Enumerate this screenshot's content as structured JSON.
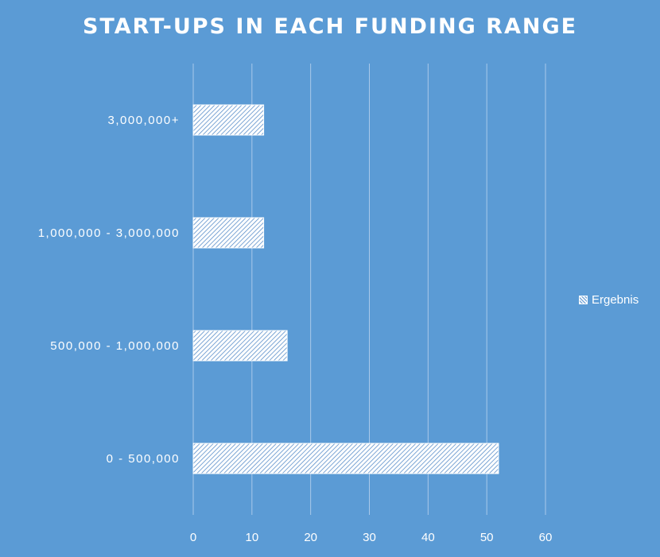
{
  "chart_data": {
    "type": "bar",
    "orientation": "horizontal",
    "title": "START-UPS IN EACH FUNDING RANGE",
    "categories": [
      "0 - 500,000",
      "500,000 - 1,000,000",
      "1,000,000 - 3,000,000",
      "3,000,000+"
    ],
    "series": [
      {
        "name": "Ergebnis",
        "values": [
          52,
          16,
          12,
          12
        ]
      }
    ],
    "xlim": [
      0,
      60
    ],
    "xticks": [
      "0",
      "10",
      "20",
      "30",
      "40",
      "50",
      "60"
    ],
    "grid": true,
    "legend_position": "right",
    "colors": {
      "background": "#5b9bd5",
      "bar_fill": "#ffffff",
      "bar_pattern": "#6f9fd6",
      "text": "#ffffff",
      "gridline": "#a9c9ea"
    }
  }
}
